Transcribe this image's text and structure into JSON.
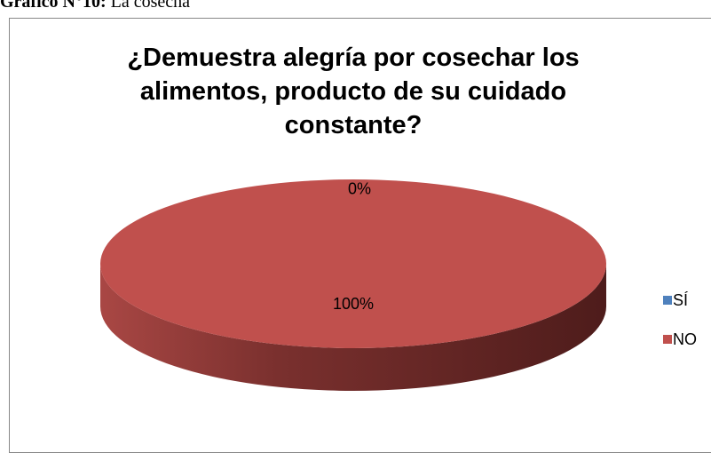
{
  "caption_label": "Gráfico N°10:",
  "caption": "La cosecha",
  "chart_data": {
    "type": "pie",
    "title": "¿Demuestra alegría por cosechar los alimentos, producto de su cuidado constante?",
    "categories": [
      "SÍ",
      "NO"
    ],
    "values": [
      0,
      100
    ],
    "value_labels": [
      "0%",
      "100%"
    ],
    "colors": [
      "#4f81bd",
      "#c0504d"
    ],
    "legend": "right"
  }
}
